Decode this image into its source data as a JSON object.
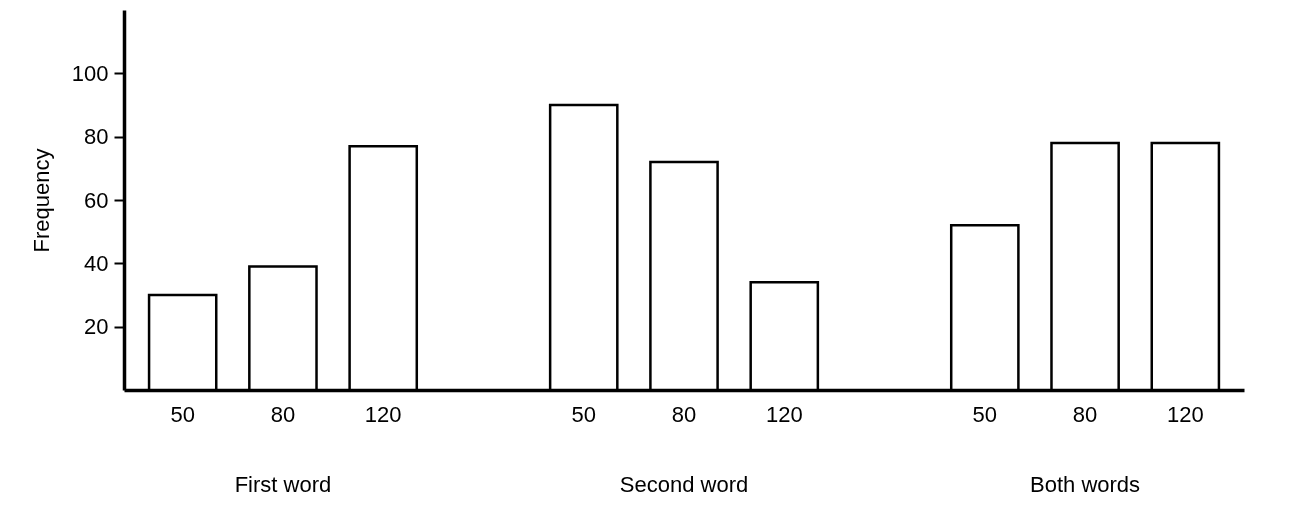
{
  "chart_data": {
    "type": "bar",
    "ylabel": "Frequency",
    "categories": [
      "50",
      "80",
      "120",
      null,
      "50",
      "80",
      "120",
      null,
      "50",
      "80",
      "120"
    ],
    "values": [
      30,
      39,
      77,
      null,
      90,
      72,
      34,
      null,
      52,
      78,
      78
    ],
    "color": "#ffffff",
    "ylim": [
      0,
      120
    ],
    "yticks": [
      20,
      40,
      60,
      80,
      100
    ],
    "grid": false,
    "annotations": [
      "First word",
      "Second word",
      "Both words"
    ]
  }
}
